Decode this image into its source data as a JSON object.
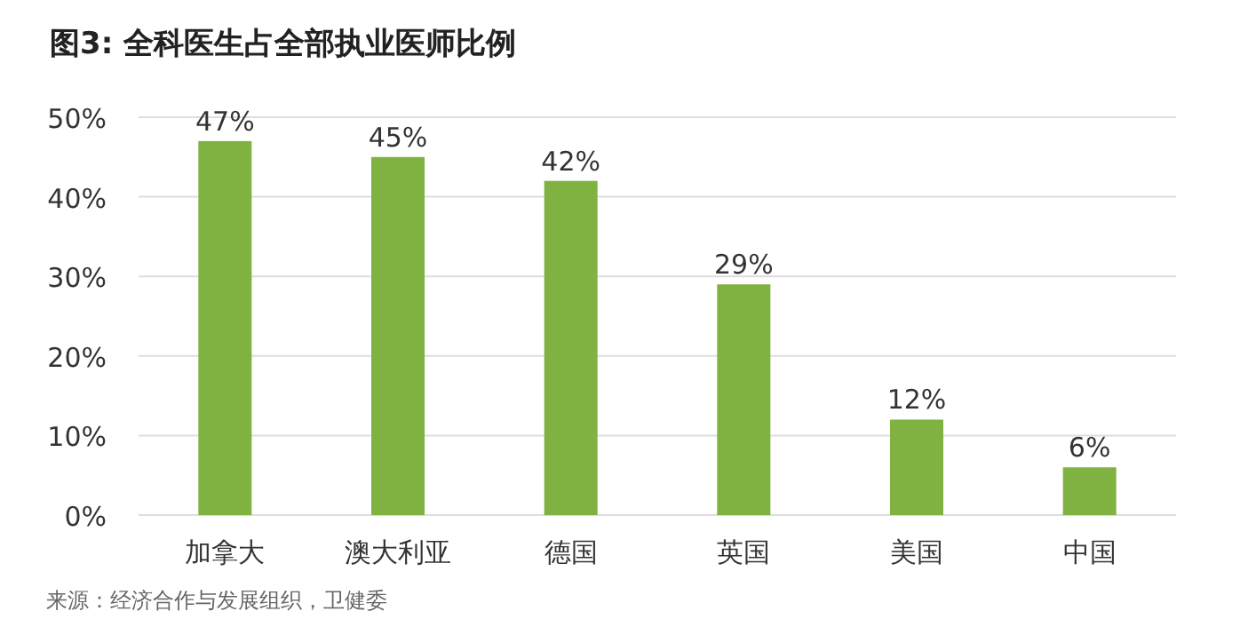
{
  "chart_data": {
    "type": "bar",
    "title": "图3: 全科医生占全部执业医师比例",
    "categories": [
      "加拿大",
      "澳大利亚",
      "德国",
      "英国",
      "美国",
      "中国"
    ],
    "values": [
      47,
      45,
      42,
      29,
      12,
      6
    ],
    "value_labels": [
      "47%",
      "45%",
      "42%",
      "29%",
      "12%",
      "6%"
    ],
    "color": "#7fb241",
    "ylim": [
      0,
      50
    ],
    "yticks": [
      {
        "value": 0,
        "label": "0%"
      },
      {
        "value": 10,
        "label": "10%"
      },
      {
        "value": 20,
        "label": "20%"
      },
      {
        "value": 30,
        "label": "30%"
      },
      {
        "value": 40,
        "label": "40%"
      },
      {
        "value": 50,
        "label": "50%"
      }
    ],
    "grid": "y",
    "annotations": [
      "来源：经济合作与发展组织，卫健委"
    ]
  }
}
